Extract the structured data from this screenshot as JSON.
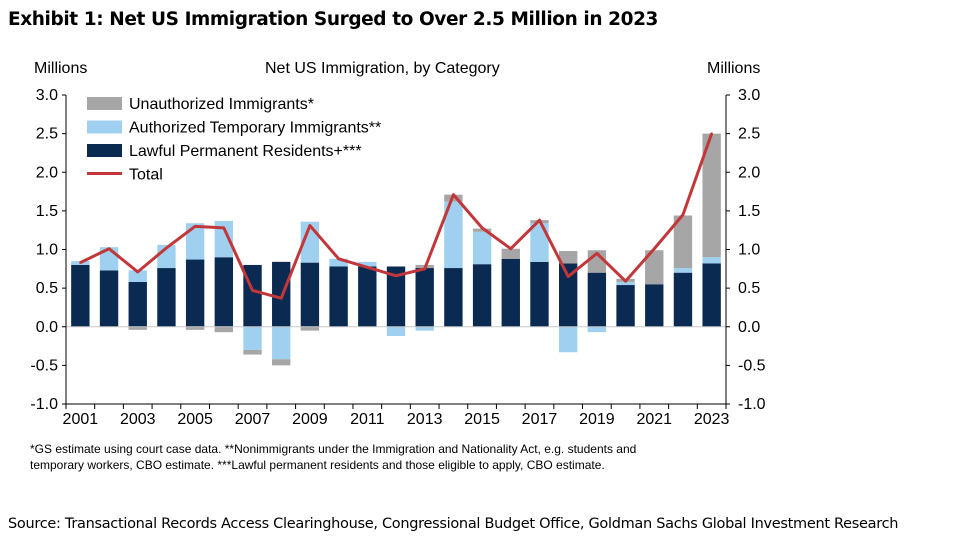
{
  "exhibit_title": "Exhibit 1: Net US Immigration Surged to Over 2.5 Million in 2023",
  "footnote_line1": "*GS estimate using court case data. **Nonimmigrants  under the Immigration and Nationality Act, e.g. students and",
  "footnote_line2": "temporary workers, CBO estimate. ***Lawful permanent residents and those eligible to apply, CBO estimate.",
  "source": "Source: Transactional Records Access Clearinghouse, Congressional Budget Office, Goldman Sachs Global Investment Research",
  "colors": {
    "unauthorized": "#a6a6a6",
    "temporary": "#9fd0f0",
    "permanent": "#0a2a52",
    "total": "#c2373a",
    "axis": "#000000"
  },
  "chart_data": {
    "type": "bar",
    "stacked": true,
    "title": "Net US Immigration, by Category",
    "ylabel_left": "Millions",
    "ylabel_right": "Millions",
    "ylim": [
      -1.0,
      3.0
    ],
    "yticks": [
      "3.0",
      "2.5",
      "2.0",
      "1.5",
      "1.0",
      "0.5",
      "0.0",
      "-0.5",
      "-1.0"
    ],
    "ytick_values": [
      3.0,
      2.5,
      2.0,
      1.5,
      1.0,
      0.5,
      0.0,
      -0.5,
      -1.0
    ],
    "categories": [
      "2001",
      "2002",
      "2003",
      "2004",
      "2005",
      "2006",
      "2007",
      "2008",
      "2009",
      "2010",
      "2011",
      "2012",
      "2013",
      "2014",
      "2015",
      "2016",
      "2017",
      "2018",
      "2019",
      "2020",
      "2021",
      "2022",
      "2023"
    ],
    "xtick_labels": [
      "2001",
      "2003",
      "2005",
      "2007",
      "2009",
      "2011",
      "2013",
      "2015",
      "2017",
      "2019",
      "2021",
      "2023"
    ],
    "legend_position": "top-left",
    "series": [
      {
        "name": "Lawful Permanent Residents+***",
        "key": "permanent",
        "values": [
          0.8,
          0.73,
          0.58,
          0.76,
          0.87,
          0.9,
          0.8,
          0.84,
          0.83,
          0.78,
          0.78,
          0.78,
          0.76,
          0.76,
          0.81,
          0.88,
          0.84,
          0.82,
          0.7,
          0.54,
          0.55,
          0.7,
          0.82
        ]
      },
      {
        "name": "Authorized Temporary Immigrants**",
        "key": "temporary",
        "values": [
          0.05,
          0.3,
          0.15,
          0.3,
          0.47,
          0.47,
          -0.3,
          -0.42,
          0.53,
          0.1,
          0.06,
          -0.12,
          -0.05,
          0.86,
          0.42,
          0.0,
          0.5,
          -0.33,
          -0.07,
          0.04,
          0.0,
          0.06,
          0.08
        ]
      },
      {
        "name": "Unauthorized Immigrants*",
        "key": "unauthorized",
        "values": [
          0.0,
          0.0,
          -0.04,
          0.0,
          -0.04,
          -0.07,
          -0.06,
          -0.08,
          -0.05,
          0.0,
          0.0,
          0.0,
          0.04,
          0.09,
          0.04,
          0.13,
          0.04,
          0.16,
          0.29,
          0.04,
          0.44,
          0.68,
          1.6
        ]
      },
      {
        "name": "Total",
        "key": "total",
        "type": "line",
        "values": [
          0.83,
          1.01,
          0.71,
          1.02,
          1.3,
          1.28,
          0.47,
          0.37,
          1.31,
          0.88,
          0.77,
          0.66,
          0.75,
          1.71,
          1.28,
          1.01,
          1.38,
          0.65,
          0.95,
          0.59,
          1.01,
          1.45,
          2.5
        ]
      }
    ]
  }
}
